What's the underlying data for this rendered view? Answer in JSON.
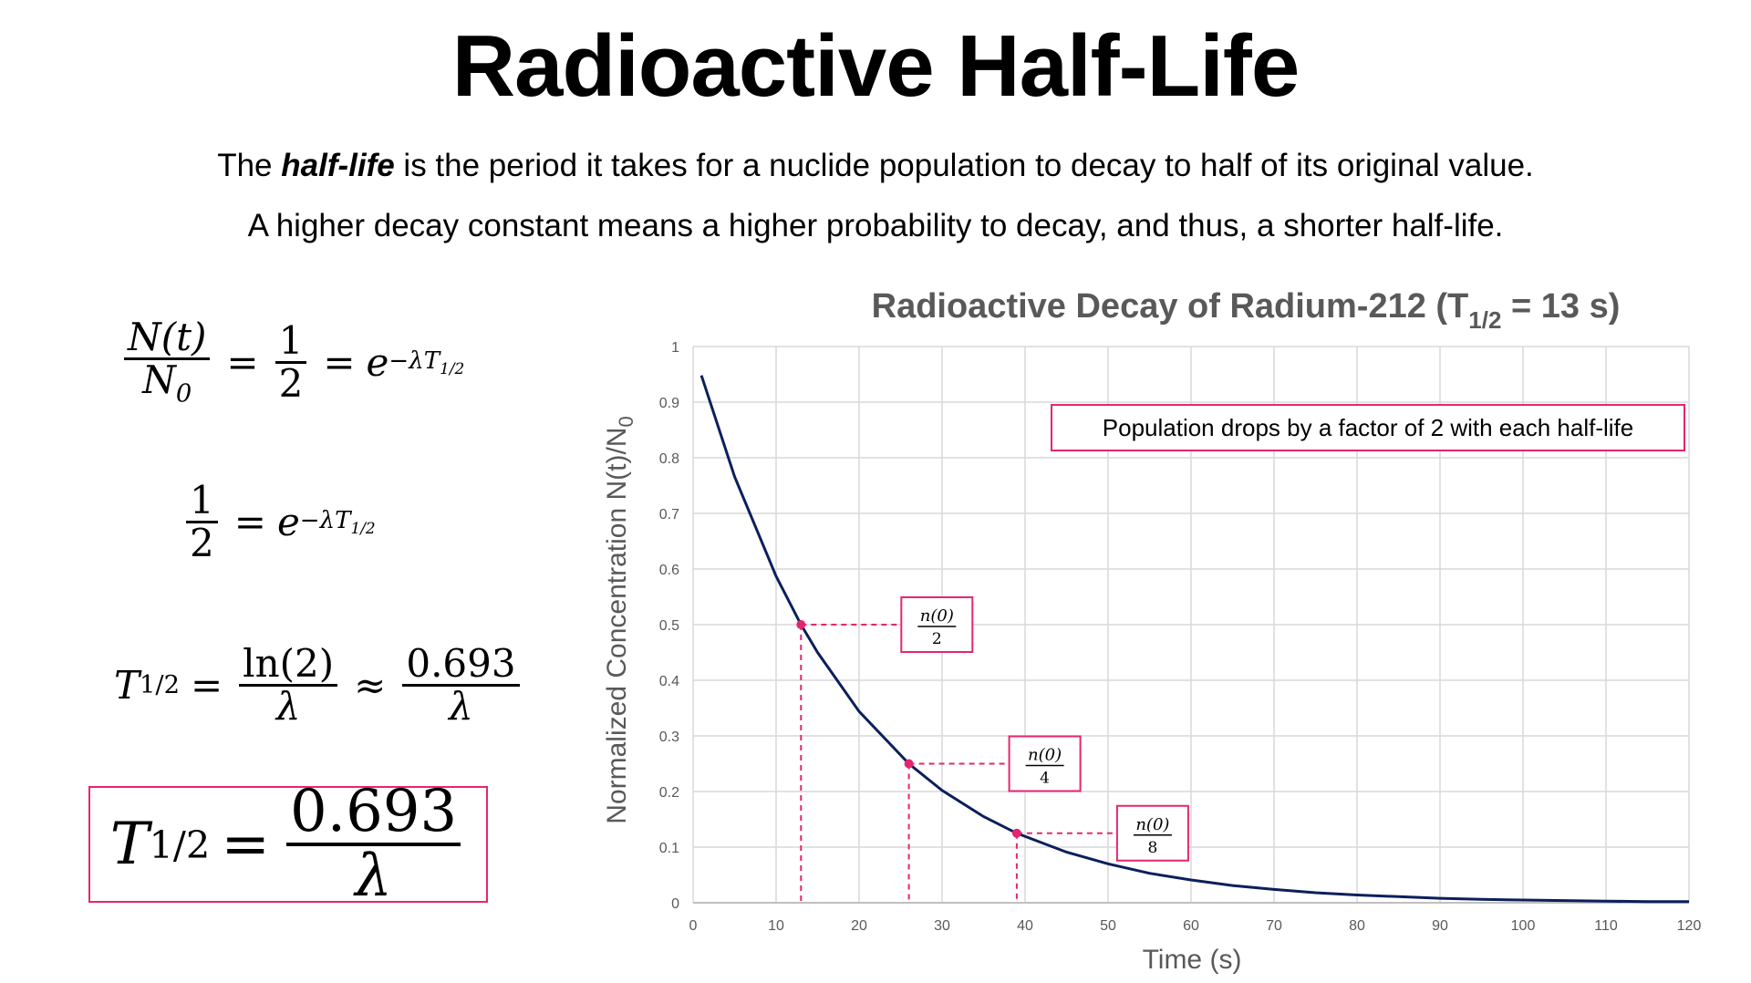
{
  "page": {
    "title": "Radioactive Half-Life",
    "line1_pre": "The ",
    "line1_em": "half-life",
    "line1_post": " is the period it takes for a nuclide population to decay to half of its original value.",
    "line2": "A higher decay constant means a higher probability to decay, and thus, a shorter half-life."
  },
  "equations": {
    "eq1": {
      "num": "N(t)",
      "den_main": "N",
      "den_sub": "0",
      "equals": "=",
      "half_num": "1",
      "half_den": "2",
      "base": "e",
      "exp": "−λT",
      "exp_sub": "1/2"
    },
    "eq2": {
      "half_num": "1",
      "half_den": "2",
      "equals": "=",
      "base": "e",
      "exp": "−λT",
      "exp_sub": "1/2"
    },
    "eq3": {
      "lhs": "T",
      "lhs_sub": "1/2",
      "equals": "=",
      "ln_num": "ln(2)",
      "ln_den": "λ",
      "approx": "≈",
      "val_num": "0.693",
      "val_den": "λ"
    },
    "eq4": {
      "lhs": "T",
      "lhs_sub": "1/2",
      "equals": "=",
      "num": "0.693",
      "den": "λ"
    }
  },
  "colors": {
    "curve": "#0c1f5c",
    "accent": "#e5266f",
    "grid": "#d9d9d9",
    "axis_text": "#595959"
  },
  "chart_data": {
    "type": "line",
    "title_main": "Radioactive Decay of Radium-212 (T",
    "title_sub": "1/2",
    "title_end": " = 13 s)",
    "xlabel": "Time (s)",
    "ylabel_main": "Normalized Concentration N(t)/N",
    "ylabel_sub": "0",
    "xlim": [
      0,
      120
    ],
    "ylim": [
      0,
      1
    ],
    "x_ticks": [
      0,
      10,
      20,
      30,
      40,
      50,
      60,
      70,
      80,
      90,
      100,
      110,
      120
    ],
    "y_ticks": [
      0,
      0.1,
      0.2,
      0.3,
      0.4,
      0.5,
      0.6,
      0.7,
      0.8,
      0.9,
      1
    ],
    "y_tick_labels": [
      "0",
      "0.1",
      "0.2",
      "0.3",
      "0.4",
      "0.5",
      "0.6",
      "0.7",
      "0.8",
      "0.9",
      "1"
    ],
    "grid": true,
    "half_life": 13,
    "series": [
      {
        "x": [
          1,
          5,
          10,
          13,
          15,
          20,
          26,
          30,
          35,
          39,
          45,
          50,
          55,
          60,
          65,
          70,
          75,
          80,
          85,
          90,
          95,
          100,
          105,
          110,
          115,
          120
        ],
        "y": [
          0.948,
          0.766,
          0.587,
          0.5,
          0.45,
          0.344,
          0.25,
          0.202,
          0.155,
          0.125,
          0.091,
          0.07,
          0.053,
          0.041,
          0.031,
          0.024,
          0.018,
          0.014,
          0.011,
          0.008,
          0.006,
          0.005,
          0.004,
          0.003,
          0.002,
          0.002
        ]
      }
    ],
    "markers": [
      {
        "x": 13,
        "y": 0.5,
        "label_num": "n(0)",
        "label_den": "2"
      },
      {
        "x": 26,
        "y": 0.25,
        "label_num": "n(0)",
        "label_den": "4"
      },
      {
        "x": 39,
        "y": 0.125,
        "label_num": "n(0)",
        "label_den": "8"
      }
    ],
    "annotation": "Population drops by a factor of 2 with each half-life"
  }
}
